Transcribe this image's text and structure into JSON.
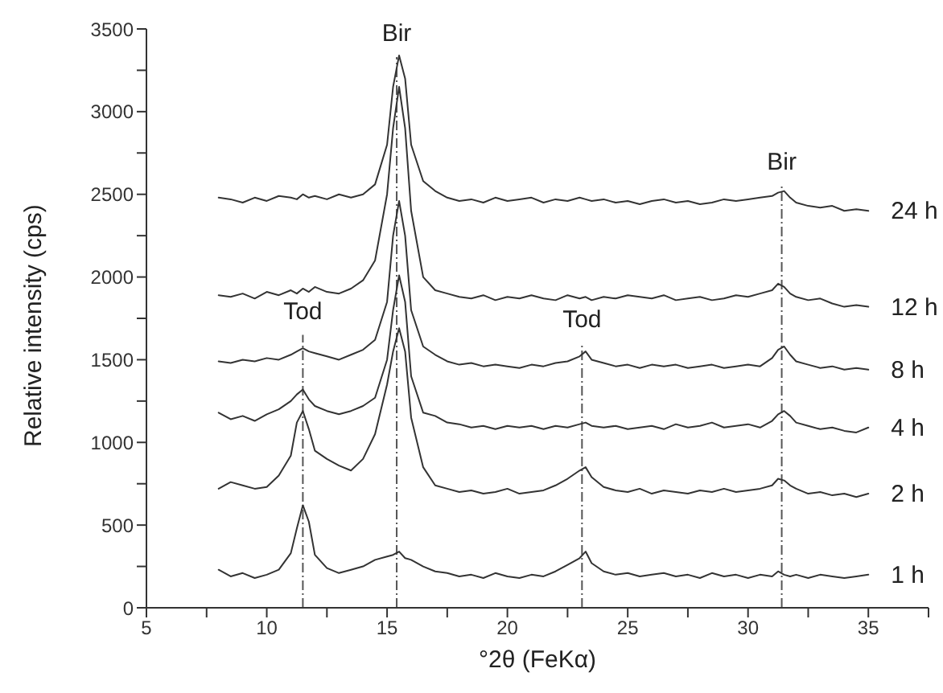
{
  "chart_data": {
    "type": "line",
    "xlabel": "°2θ (FeKα)",
    "ylabel": "Relative intensity (cps)",
    "x": [
      8,
      8.5,
      9,
      9.5,
      10,
      10.5,
      11,
      11.25,
      11.5,
      11.75,
      12,
      12.5,
      13,
      13.5,
      14,
      14.5,
      15,
      15.25,
      15.5,
      15.75,
      16,
      16.5,
      17,
      17.5,
      18,
      18.5,
      19,
      19.5,
      20,
      20.5,
      21,
      21.5,
      22,
      22.5,
      23,
      23.25,
      23.5,
      24,
      24.5,
      25,
      25.5,
      26,
      26.5,
      27,
      27.5,
      28,
      28.5,
      29,
      29.5,
      30,
      30.5,
      31,
      31.25,
      31.5,
      31.75,
      32,
      32.5,
      33,
      33.5,
      34,
      34.5,
      35
    ],
    "series": [
      {
        "name": "1 h",
        "color": "#333333",
        "values": [
          230,
          190,
          210,
          180,
          200,
          230,
          330,
          480,
          620,
          520,
          320,
          240,
          210,
          230,
          250,
          290,
          310,
          320,
          340,
          300,
          290,
          250,
          220,
          210,
          190,
          200,
          180,
          210,
          190,
          180,
          200,
          190,
          220,
          260,
          300,
          340,
          270,
          220,
          200,
          210,
          190,
          200,
          210,
          190,
          200,
          180,
          210,
          190,
          200,
          180,
          200,
          190,
          220,
          200,
          190,
          200,
          180,
          200,
          190,
          180,
          190,
          200
        ]
      },
      {
        "name": "2 h",
        "color": "#333333",
        "values": [
          720,
          760,
          740,
          720,
          730,
          800,
          920,
          1120,
          1190,
          1080,
          950,
          900,
          860,
          830,
          900,
          1050,
          1350,
          1550,
          1690,
          1550,
          1150,
          850,
          740,
          720,
          700,
          710,
          690,
          700,
          720,
          690,
          700,
          710,
          740,
          780,
          830,
          850,
          790,
          730,
          710,
          700,
          720,
          690,
          710,
          700,
          690,
          710,
          700,
          720,
          700,
          710,
          720,
          740,
          780,
          770,
          740,
          720,
          690,
          700,
          680,
          690,
          670,
          690
        ]
      },
      {
        "name": "4 h",
        "color": "#333333",
        "values": [
          1180,
          1140,
          1160,
          1130,
          1170,
          1200,
          1250,
          1290,
          1320,
          1260,
          1220,
          1190,
          1170,
          1190,
          1220,
          1270,
          1500,
          1800,
          2010,
          1850,
          1400,
          1180,
          1160,
          1120,
          1110,
          1090,
          1100,
          1080,
          1100,
          1090,
          1100,
          1080,
          1100,
          1090,
          1110,
          1120,
          1100,
          1090,
          1100,
          1080,
          1090,
          1100,
          1080,
          1110,
          1090,
          1100,
          1120,
          1090,
          1100,
          1110,
          1090,
          1130,
          1170,
          1190,
          1160,
          1120,
          1100,
          1080,
          1090,
          1070,
          1060,
          1090
        ]
      },
      {
        "name": "8 h",
        "color": "#333333",
        "values": [
          1490,
          1480,
          1500,
          1490,
          1510,
          1500,
          1530,
          1550,
          1570,
          1550,
          1540,
          1520,
          1500,
          1530,
          1560,
          1620,
          1850,
          2250,
          2460,
          2250,
          1800,
          1580,
          1530,
          1490,
          1470,
          1480,
          1460,
          1470,
          1460,
          1450,
          1470,
          1460,
          1480,
          1490,
          1520,
          1550,
          1500,
          1480,
          1460,
          1470,
          1450,
          1470,
          1460,
          1470,
          1450,
          1460,
          1470,
          1450,
          1460,
          1470,
          1460,
          1510,
          1560,
          1580,
          1530,
          1490,
          1470,
          1450,
          1460,
          1440,
          1450,
          1440
        ]
      },
      {
        "name": "12 h",
        "color": "#333333",
        "values": [
          1890,
          1880,
          1900,
          1870,
          1910,
          1890,
          1920,
          1900,
          1930,
          1910,
          1940,
          1910,
          1900,
          1930,
          1980,
          2100,
          2500,
          2900,
          3150,
          2900,
          2400,
          2000,
          1920,
          1900,
          1880,
          1870,
          1890,
          1860,
          1880,
          1870,
          1890,
          1870,
          1860,
          1890,
          1870,
          1880,
          1860,
          1880,
          1870,
          1890,
          1880,
          1870,
          1890,
          1860,
          1870,
          1880,
          1860,
          1870,
          1890,
          1880,
          1900,
          1920,
          1960,
          1940,
          1900,
          1880,
          1860,
          1870,
          1840,
          1820,
          1830,
          1820
        ]
      },
      {
        "name": "24 h",
        "color": "#333333",
        "values": [
          2480,
          2470,
          2450,
          2480,
          2460,
          2490,
          2480,
          2470,
          2500,
          2480,
          2490,
          2470,
          2500,
          2480,
          2500,
          2560,
          2800,
          3150,
          3340,
          3200,
          2800,
          2580,
          2520,
          2480,
          2460,
          2470,
          2450,
          2480,
          2460,
          2470,
          2480,
          2450,
          2470,
          2460,
          2480,
          2470,
          2460,
          2470,
          2450,
          2460,
          2440,
          2460,
          2470,
          2450,
          2460,
          2440,
          2450,
          2470,
          2460,
          2470,
          2480,
          2490,
          2510,
          2520,
          2480,
          2450,
          2430,
          2420,
          2430,
          2400,
          2410,
          2400
        ]
      }
    ],
    "xlim": [
      5,
      37.5
    ],
    "xticks": [
      5,
      {
        "value": 7.5,
        "label": null
      },
      10,
      {
        "value": 12.5,
        "label": null
      },
      15,
      {
        "value": 17.5,
        "label": null
      },
      20,
      {
        "value": 22.5,
        "label": null
      },
      25,
      {
        "value": 27.5,
        "label": null
      },
      30,
      {
        "value": 32.5,
        "label": null
      },
      35,
      {
        "value": 37.5,
        "label": null
      }
    ],
    "ylim": [
      0,
      3500
    ],
    "yticks": [
      0,
      {
        "value": 250,
        "label": null
      },
      500,
      {
        "value": 750,
        "label": null
      },
      1000,
      {
        "value": 1250,
        "label": null
      },
      1500,
      {
        "value": 1750,
        "label": null
      },
      2000,
      {
        "value": 2250,
        "label": null
      },
      2500,
      {
        "value": 2750,
        "label": null
      },
      3000,
      {
        "value": 3250,
        "label": null
      },
      3500
    ],
    "ref_lines": [
      {
        "axis": "x",
        "value": 11.5,
        "color": "#555555",
        "line_style": "dashed"
      },
      {
        "axis": "x",
        "value": 15.4,
        "color": "#555555",
        "line_style": "dashed"
      },
      {
        "axis": "x",
        "value": 23.1,
        "color": "#555555",
        "line_style": "dashed"
      },
      {
        "axis": "x",
        "value": 31.4,
        "color": "#555555",
        "line_style": "dashed"
      }
    ],
    "annotations": [
      {
        "text": "Tod",
        "x": 11.5,
        "y": 1650
      },
      {
        "text": "Bir",
        "x": 15.4,
        "y": 3330
      },
      {
        "text": "Tod",
        "x": 23.1,
        "y": 1600
      },
      {
        "text": "Bir",
        "x": 31.4,
        "y": 2550
      }
    ],
    "marker": "none",
    "line_style": "solid",
    "grid": false,
    "legend": false
  }
}
